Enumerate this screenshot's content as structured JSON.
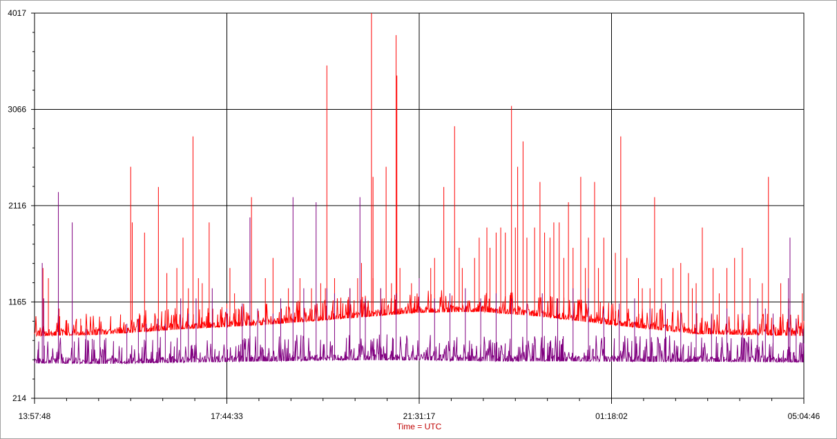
{
  "chart_data": {
    "type": "line",
    "xlabel": "Time = UTC",
    "ylim": [
      214,
      4017
    ],
    "yticks": [
      "4017",
      "3066",
      "2116",
      "1165",
      "214"
    ],
    "ytick_values": [
      4017,
      3066,
      2116,
      1165,
      214
    ],
    "xticks": [
      "13:57:48",
      "17:44:33",
      "21:31:17",
      "01:18:02",
      "05:04:46"
    ],
    "grid": true,
    "series": [
      {
        "color": "#ff0000",
        "baseline": [
          [
            0,
            830
          ],
          [
            0.08,
            840
          ],
          [
            0.2,
            900
          ],
          [
            0.3,
            940
          ],
          [
            0.4,
            1000
          ],
          [
            0.5,
            1060
          ],
          [
            0.58,
            1070
          ],
          [
            0.66,
            1020
          ],
          [
            0.76,
            930
          ],
          [
            0.86,
            850
          ],
          [
            1.0,
            830
          ]
        ],
        "spikes": [
          [
            0.011,
            1500
          ],
          [
            0.018,
            1400
          ],
          [
            0.032,
            1100
          ],
          [
            0.06,
            1000
          ],
          [
            0.125,
            2500
          ],
          [
            0.127,
            1950
          ],
          [
            0.143,
            1850
          ],
          [
            0.161,
            2300
          ],
          [
            0.172,
            1450
          ],
          [
            0.185,
            1500
          ],
          [
            0.193,
            1800
          ],
          [
            0.2,
            1300
          ],
          [
            0.206,
            2800
          ],
          [
            0.213,
            1400
          ],
          [
            0.218,
            1350
          ],
          [
            0.227,
            1950
          ],
          [
            0.25,
            1150
          ],
          [
            0.26,
            1250
          ],
          [
            0.265,
            1100
          ],
          [
            0.254,
            1500
          ],
          [
            0.282,
            2200
          ],
          [
            0.3,
            1400
          ],
          [
            0.31,
            1600
          ],
          [
            0.33,
            1300
          ],
          [
            0.345,
            1400
          ],
          [
            0.36,
            1300
          ],
          [
            0.372,
            1350
          ],
          [
            0.378,
            1300
          ],
          [
            0.38,
            3500
          ],
          [
            0.39,
            1400
          ],
          [
            0.41,
            1300
          ],
          [
            0.42,
            1400
          ],
          [
            0.425,
            1550
          ],
          [
            0.44,
            1400
          ],
          [
            0.438,
            4017
          ],
          [
            0.44,
            2400
          ],
          [
            0.45,
            1300
          ],
          [
            0.457,
            2500
          ],
          [
            0.464,
            1350
          ],
          [
            0.47,
            3800
          ],
          [
            0.471,
            3400
          ],
          [
            0.475,
            1500
          ],
          [
            0.49,
            1350
          ],
          [
            0.5,
            1400
          ],
          [
            0.515,
            1500
          ],
          [
            0.52,
            1600
          ],
          [
            0.532,
            2300
          ],
          [
            0.546,
            2900
          ],
          [
            0.552,
            1700
          ],
          [
            0.556,
            1500
          ],
          [
            0.572,
            1600
          ],
          [
            0.578,
            1800
          ],
          [
            0.588,
            1900
          ],
          [
            0.592,
            1700
          ],
          [
            0.6,
            1850
          ],
          [
            0.606,
            1900
          ],
          [
            0.612,
            1850
          ],
          [
            0.625,
            1900
          ],
          [
            0.62,
            3100
          ],
          [
            0.628,
            2500
          ],
          [
            0.635,
            2750
          ],
          [
            0.64,
            1800
          ],
          [
            0.65,
            1900
          ],
          [
            0.657,
            2350
          ],
          [
            0.663,
            1850
          ],
          [
            0.67,
            1800
          ],
          [
            0.675,
            1950
          ],
          [
            0.682,
            1950
          ],
          [
            0.688,
            1600
          ],
          [
            0.694,
            2150
          ],
          [
            0.7,
            1700
          ],
          [
            0.71,
            2400
          ],
          [
            0.716,
            1500
          ],
          [
            0.72,
            1800
          ],
          [
            0.728,
            2350
          ],
          [
            0.733,
            1500
          ],
          [
            0.74,
            1800
          ],
          [
            0.755,
            1650
          ],
          [
            0.762,
            2800
          ],
          [
            0.77,
            1600
          ],
          [
            0.785,
            1400
          ],
          [
            0.79,
            1300
          ],
          [
            0.8,
            1300
          ],
          [
            0.806,
            2200
          ],
          [
            0.815,
            1400
          ],
          [
            0.83,
            1500
          ],
          [
            0.84,
            1550
          ],
          [
            0.85,
            1450
          ],
          [
            0.855,
            1300
          ],
          [
            0.86,
            1350
          ],
          [
            0.868,
            1900
          ],
          [
            0.882,
            1500
          ],
          [
            0.89,
            1250
          ],
          [
            0.9,
            1500
          ],
          [
            0.91,
            1600
          ],
          [
            0.92,
            1700
          ],
          [
            0.93,
            1400
          ],
          [
            0.946,
            1350
          ],
          [
            0.954,
            2400
          ],
          [
            0.97,
            1350
          ],
          [
            0.98,
            1200
          ],
          [
            0.99,
            1000
          ],
          [
            0.998,
            1250
          ]
        ]
      },
      {
        "color": "#800080",
        "baseline": [
          [
            0,
            560
          ],
          [
            0.1,
            555
          ],
          [
            0.2,
            570
          ],
          [
            0.3,
            580
          ],
          [
            0.4,
            590
          ],
          [
            0.5,
            590
          ],
          [
            0.6,
            580
          ],
          [
            0.7,
            580
          ],
          [
            0.8,
            575
          ],
          [
            0.9,
            575
          ],
          [
            1.0,
            570
          ]
        ],
        "spikes": [
          [
            0.01,
            1550
          ],
          [
            0.012,
            1200
          ],
          [
            0.031,
            2250
          ],
          [
            0.049,
            1950
          ],
          [
            0.067,
            900
          ],
          [
            0.075,
            800
          ],
          [
            0.085,
            900
          ],
          [
            0.12,
            950
          ],
          [
            0.135,
            1000
          ],
          [
            0.145,
            950
          ],
          [
            0.16,
            1000
          ],
          [
            0.17,
            950
          ],
          [
            0.19,
            1200
          ],
          [
            0.2,
            1050
          ],
          [
            0.21,
            1200
          ],
          [
            0.231,
            1300
          ],
          [
            0.25,
            1100
          ],
          [
            0.27,
            1150
          ],
          [
            0.28,
            2000
          ],
          [
            0.29,
            1100
          ],
          [
            0.3,
            1000
          ],
          [
            0.31,
            1050
          ],
          [
            0.32,
            1200
          ],
          [
            0.32,
            1100
          ],
          [
            0.336,
            2200
          ],
          [
            0.35,
            1300
          ],
          [
            0.366,
            2150
          ],
          [
            0.38,
            1300
          ],
          [
            0.39,
            1250
          ],
          [
            0.41,
            1300
          ],
          [
            0.423,
            2200
          ],
          [
            0.43,
            1200
          ],
          [
            0.45,
            1300
          ],
          [
            0.47,
            1250
          ],
          [
            0.5,
            1400
          ],
          [
            0.52,
            1200
          ],
          [
            0.54,
            1250
          ],
          [
            0.56,
            1300
          ],
          [
            0.58,
            1200
          ],
          [
            0.6,
            1250
          ],
          [
            0.62,
            1200
          ],
          [
            0.64,
            1150
          ],
          [
            0.66,
            1250
          ],
          [
            0.68,
            1200
          ],
          [
            0.7,
            1300
          ],
          [
            0.72,
            1300
          ],
          [
            0.74,
            1100
          ],
          [
            0.76,
            1150
          ],
          [
            0.78,
            1200
          ],
          [
            0.8,
            1100
          ],
          [
            0.82,
            1150
          ],
          [
            0.84,
            1050
          ],
          [
            0.86,
            1150
          ],
          [
            0.88,
            1050
          ],
          [
            0.9,
            1100
          ],
          [
            0.92,
            1050
          ],
          [
            0.94,
            1200
          ],
          [
            0.95,
            1100
          ],
          [
            0.96,
            1050
          ],
          [
            0.98,
            1100
          ],
          [
            0.98,
            1400
          ],
          [
            0.982,
            1800
          ],
          [
            0.99,
            1000
          ],
          [
            0.999,
            900
          ]
        ]
      }
    ]
  }
}
